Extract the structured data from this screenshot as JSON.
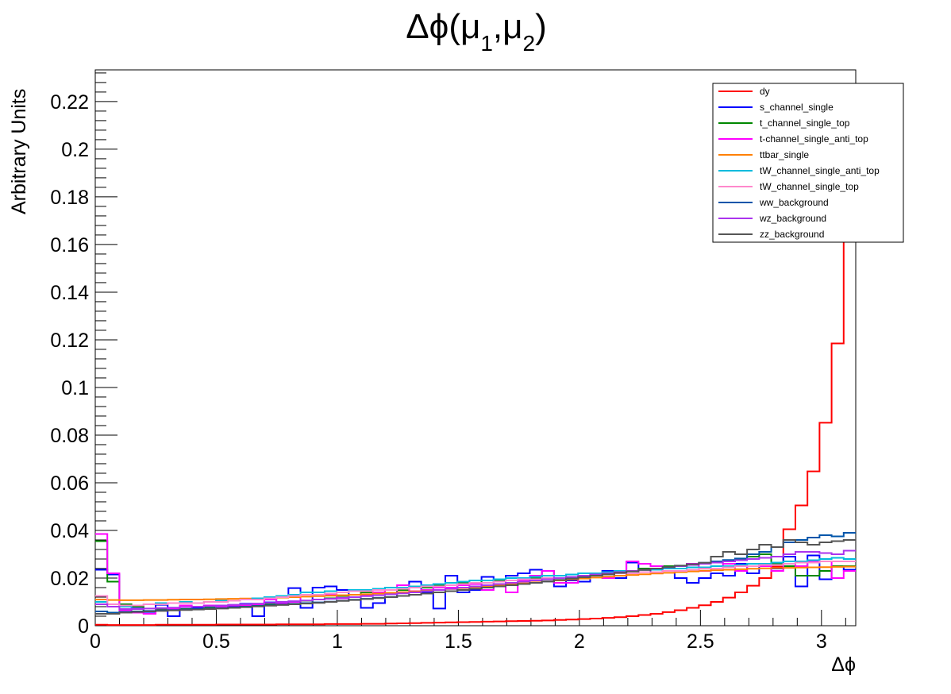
{
  "chart_data": {
    "type": "line",
    "title": {
      "main": "Δϕ(μ",
      "sub1": "1",
      "sep": ",μ",
      "sub2": "2",
      "close": ")"
    },
    "xlabel": "Δϕ",
    "ylabel": "Arbitrary Units",
    "xlim": [
      0,
      3.1416
    ],
    "ylim": [
      0,
      0.2333
    ],
    "x_ticks": [
      0,
      0.5,
      1,
      1.5,
      2,
      2.5,
      3
    ],
    "x_tick_labels": [
      "0",
      "0.5",
      "1",
      "1.5",
      "2",
      "2.5",
      "3"
    ],
    "y_ticks": [
      0,
      0.02,
      0.04,
      0.06,
      0.08,
      0.1,
      0.12,
      0.14,
      0.16,
      0.18,
      0.2,
      0.22
    ],
    "y_tick_labels": [
      "0",
      "0.02",
      "0.04",
      "0.06",
      "0.08",
      "0.1",
      "0.12",
      "0.14",
      "0.16",
      "0.18",
      "0.2",
      "0.22"
    ],
    "grid": false,
    "legend_position": "top-right",
    "bins": 63,
    "series": [
      {
        "name": "dy",
        "color": "#ff0000",
        "values": [
          0.0004,
          0.0003,
          0.0003,
          0.0003,
          0.0003,
          0.0004,
          0.0004,
          0.0004,
          0.0004,
          0.0004,
          0.0005,
          0.0005,
          0.0005,
          0.0005,
          0.0005,
          0.0006,
          0.0006,
          0.0006,
          0.0006,
          0.0007,
          0.0007,
          0.0007,
          0.0008,
          0.0008,
          0.0009,
          0.001,
          0.0011,
          0.0012,
          0.0013,
          0.0014,
          0.0015,
          0.0016,
          0.0017,
          0.0018,
          0.0019,
          0.002,
          0.0021,
          0.0022,
          0.0024,
          0.0026,
          0.0028,
          0.003,
          0.0033,
          0.0036,
          0.004,
          0.0045,
          0.005,
          0.0057,
          0.0065,
          0.0075,
          0.0086,
          0.01,
          0.0118,
          0.014,
          0.0168,
          0.02,
          0.0248,
          0.0405,
          0.0505,
          0.0648,
          0.0852,
          0.1185,
          0.2102
        ]
      },
      {
        "name": "s_channel_single",
        "color": "#0000ff",
        "values": [
          0.0235,
          0.0215,
          0.008,
          0.0078,
          0.0052,
          0.0088,
          0.004,
          0.007,
          0.0075,
          0.0082,
          0.0075,
          0.008,
          0.0092,
          0.004,
          0.0098,
          0.012,
          0.0158,
          0.0075,
          0.016,
          0.0165,
          0.015,
          0.013,
          0.0075,
          0.0095,
          0.012,
          0.015,
          0.0185,
          0.014,
          0.0072,
          0.021,
          0.014,
          0.015,
          0.0205,
          0.0175,
          0.021,
          0.022,
          0.0235,
          0.0198,
          0.0165,
          0.019,
          0.0185,
          0.021,
          0.023,
          0.02,
          0.0265,
          0.024,
          0.022,
          0.023,
          0.02,
          0.018,
          0.02,
          0.022,
          0.021,
          0.026,
          0.022,
          0.026,
          0.024,
          0.029,
          0.0165,
          0.0295,
          0.0195,
          0.025,
          0.0235
        ]
      },
      {
        "name": "t_channel_single_top",
        "color": "#008800",
        "values": [
          0.0355,
          0.0185,
          0.009,
          0.008,
          0.006,
          0.007,
          0.0065,
          0.007,
          0.007,
          0.0078,
          0.0078,
          0.0085,
          0.009,
          0.0085,
          0.009,
          0.0095,
          0.01,
          0.0105,
          0.011,
          0.0115,
          0.0125,
          0.013,
          0.014,
          0.014,
          0.015,
          0.015,
          0.016,
          0.016,
          0.017,
          0.017,
          0.018,
          0.018,
          0.019,
          0.019,
          0.02,
          0.02,
          0.02,
          0.023,
          0.021,
          0.02,
          0.02,
          0.021,
          0.022,
          0.023,
          0.023,
          0.024,
          0.024,
          0.025,
          0.025,
          0.026,
          0.026,
          0.027,
          0.027,
          0.028,
          0.029,
          0.03,
          0.026,
          0.025,
          0.021,
          0.021,
          0.023,
          0.025,
          0.025
        ]
      },
      {
        "name": "t-channel_single_anti_top",
        "color": "#ff00ff",
        "values": [
          0.0385,
          0.022,
          0.0065,
          0.0055,
          0.005,
          0.0065,
          0.007,
          0.0085,
          0.008,
          0.0085,
          0.008,
          0.0085,
          0.0085,
          0.009,
          0.011,
          0.0095,
          0.01,
          0.013,
          0.013,
          0.013,
          0.0115,
          0.012,
          0.013,
          0.014,
          0.016,
          0.017,
          0.0145,
          0.015,
          0.016,
          0.016,
          0.017,
          0.0175,
          0.015,
          0.017,
          0.014,
          0.019,
          0.021,
          0.023,
          0.018,
          0.018,
          0.021,
          0.022,
          0.02,
          0.021,
          0.027,
          0.026,
          0.025,
          0.024,
          0.025,
          0.026,
          0.023,
          0.024,
          0.026,
          0.023,
          0.026,
          0.025,
          0.023,
          0.027,
          0.025,
          0.027,
          0.027,
          0.02,
          0.023
        ]
      },
      {
        "name": "ttbar_single",
        "color": "#ff8000",
        "values": [
          0.011,
          0.0108,
          0.0107,
          0.0107,
          0.0108,
          0.0108,
          0.0109,
          0.011,
          0.011,
          0.0111,
          0.0112,
          0.0113,
          0.0114,
          0.0115,
          0.0117,
          0.0118,
          0.012,
          0.0122,
          0.0124,
          0.0126,
          0.0128,
          0.013,
          0.0132,
          0.0135,
          0.0138,
          0.0141,
          0.0144,
          0.0147,
          0.015,
          0.0154,
          0.0158,
          0.0162,
          0.0166,
          0.017,
          0.0174,
          0.0178,
          0.0182,
          0.0186,
          0.019,
          0.0194,
          0.0198,
          0.0202,
          0.0206,
          0.021,
          0.0213,
          0.0216,
          0.0219,
          0.0222,
          0.0225,
          0.0228,
          0.0231,
          0.0233,
          0.0235,
          0.0237,
          0.0239,
          0.0241,
          0.0242,
          0.0243,
          0.0244,
          0.0245,
          0.0246,
          0.0247,
          0.0248
        ]
      },
      {
        "name": "tW_channel_single_anti_top",
        "color": "#00bbdd",
        "values": [
          0.01,
          0.009,
          0.008,
          0.0085,
          0.009,
          0.0095,
          0.0095,
          0.01,
          0.0095,
          0.01,
          0.0105,
          0.0105,
          0.011,
          0.0115,
          0.012,
          0.0125,
          0.013,
          0.014,
          0.014,
          0.0145,
          0.014,
          0.015,
          0.015,
          0.0155,
          0.016,
          0.016,
          0.0165,
          0.017,
          0.0175,
          0.018,
          0.0185,
          0.019,
          0.019,
          0.0195,
          0.02,
          0.02,
          0.0205,
          0.021,
          0.021,
          0.0215,
          0.022,
          0.022,
          0.0225,
          0.023,
          0.023,
          0.0235,
          0.0235,
          0.024,
          0.024,
          0.0245,
          0.0245,
          0.025,
          0.025,
          0.0255,
          0.026,
          0.026,
          0.0265,
          0.027,
          0.027,
          0.0275,
          0.028,
          0.0285,
          0.028
        ]
      },
      {
        "name": "tW_channel_single_top",
        "color": "#ff88cc",
        "values": [
          0.0125,
          0.009,
          0.0085,
          0.0085,
          0.009,
          0.009,
          0.0095,
          0.0095,
          0.0095,
          0.01,
          0.01,
          0.0105,
          0.011,
          0.011,
          0.0115,
          0.012,
          0.0125,
          0.013,
          0.013,
          0.0135,
          0.014,
          0.0145,
          0.0145,
          0.015,
          0.015,
          0.0155,
          0.016,
          0.0165,
          0.0165,
          0.017,
          0.0175,
          0.018,
          0.018,
          0.0185,
          0.019,
          0.0195,
          0.0195,
          0.02,
          0.02,
          0.0205,
          0.021,
          0.021,
          0.0215,
          0.022,
          0.022,
          0.0225,
          0.0225,
          0.023,
          0.023,
          0.0235,
          0.024,
          0.024,
          0.0245,
          0.025,
          0.025,
          0.0255,
          0.0255,
          0.026,
          0.0265,
          0.0265,
          0.027,
          0.027,
          0.027
        ]
      },
      {
        "name": "ww_background",
        "color": "#0055aa",
        "values": [
          0.006,
          0.0055,
          0.0058,
          0.006,
          0.0062,
          0.0064,
          0.0066,
          0.0068,
          0.007,
          0.0072,
          0.0074,
          0.0077,
          0.008,
          0.0083,
          0.0086,
          0.0089,
          0.0092,
          0.0095,
          0.0098,
          0.0101,
          0.0105,
          0.0109,
          0.0113,
          0.0117,
          0.0121,
          0.0125,
          0.013,
          0.0135,
          0.014,
          0.0145,
          0.015,
          0.0155,
          0.016,
          0.0165,
          0.017,
          0.0175,
          0.018,
          0.0186,
          0.0192,
          0.0198,
          0.0204,
          0.021,
          0.0216,
          0.0222,
          0.0228,
          0.0234,
          0.024,
          0.0246,
          0.0252,
          0.0258,
          0.0264,
          0.027,
          0.0276,
          0.0282,
          0.03,
          0.031,
          0.033,
          0.035,
          0.036,
          0.037,
          0.038,
          0.0375,
          0.039
        ]
      },
      {
        "name": "wz_background",
        "color": "#aa33ee",
        "values": [
          0.009,
          0.008,
          0.007,
          0.007,
          0.0072,
          0.0074,
          0.0076,
          0.0078,
          0.008,
          0.0082,
          0.0085,
          0.0088,
          0.009,
          0.0093,
          0.0096,
          0.01,
          0.0103,
          0.0106,
          0.011,
          0.0113,
          0.0117,
          0.012,
          0.0124,
          0.0128,
          0.0132,
          0.0136,
          0.014,
          0.0145,
          0.015,
          0.0155,
          0.016,
          0.0165,
          0.017,
          0.0175,
          0.018,
          0.0185,
          0.019,
          0.0195,
          0.02,
          0.0205,
          0.021,
          0.0215,
          0.022,
          0.0225,
          0.023,
          0.0235,
          0.024,
          0.0245,
          0.025,
          0.0255,
          0.026,
          0.0265,
          0.027,
          0.0275,
          0.028,
          0.0285,
          0.029,
          0.03,
          0.031,
          0.031,
          0.0305,
          0.03,
          0.0315
        ]
      },
      {
        "name": "zz_background",
        "color": "#555555",
        "values": [
          0.005,
          0.005,
          0.0055,
          0.0058,
          0.006,
          0.0062,
          0.0064,
          0.0066,
          0.0068,
          0.007,
          0.0072,
          0.0075,
          0.0078,
          0.0081,
          0.0084,
          0.0087,
          0.009,
          0.0093,
          0.0096,
          0.01,
          0.0104,
          0.0108,
          0.0112,
          0.0116,
          0.012,
          0.0125,
          0.013,
          0.0135,
          0.014,
          0.0145,
          0.015,
          0.0155,
          0.016,
          0.0165,
          0.017,
          0.0175,
          0.018,
          0.0186,
          0.0192,
          0.0198,
          0.0204,
          0.021,
          0.0216,
          0.0222,
          0.0228,
          0.0234,
          0.024,
          0.0246,
          0.0252,
          0.0258,
          0.0264,
          0.029,
          0.031,
          0.03,
          0.032,
          0.034,
          0.033,
          0.036,
          0.035,
          0.034,
          0.035,
          0.0355,
          0.036
        ]
      }
    ]
  }
}
